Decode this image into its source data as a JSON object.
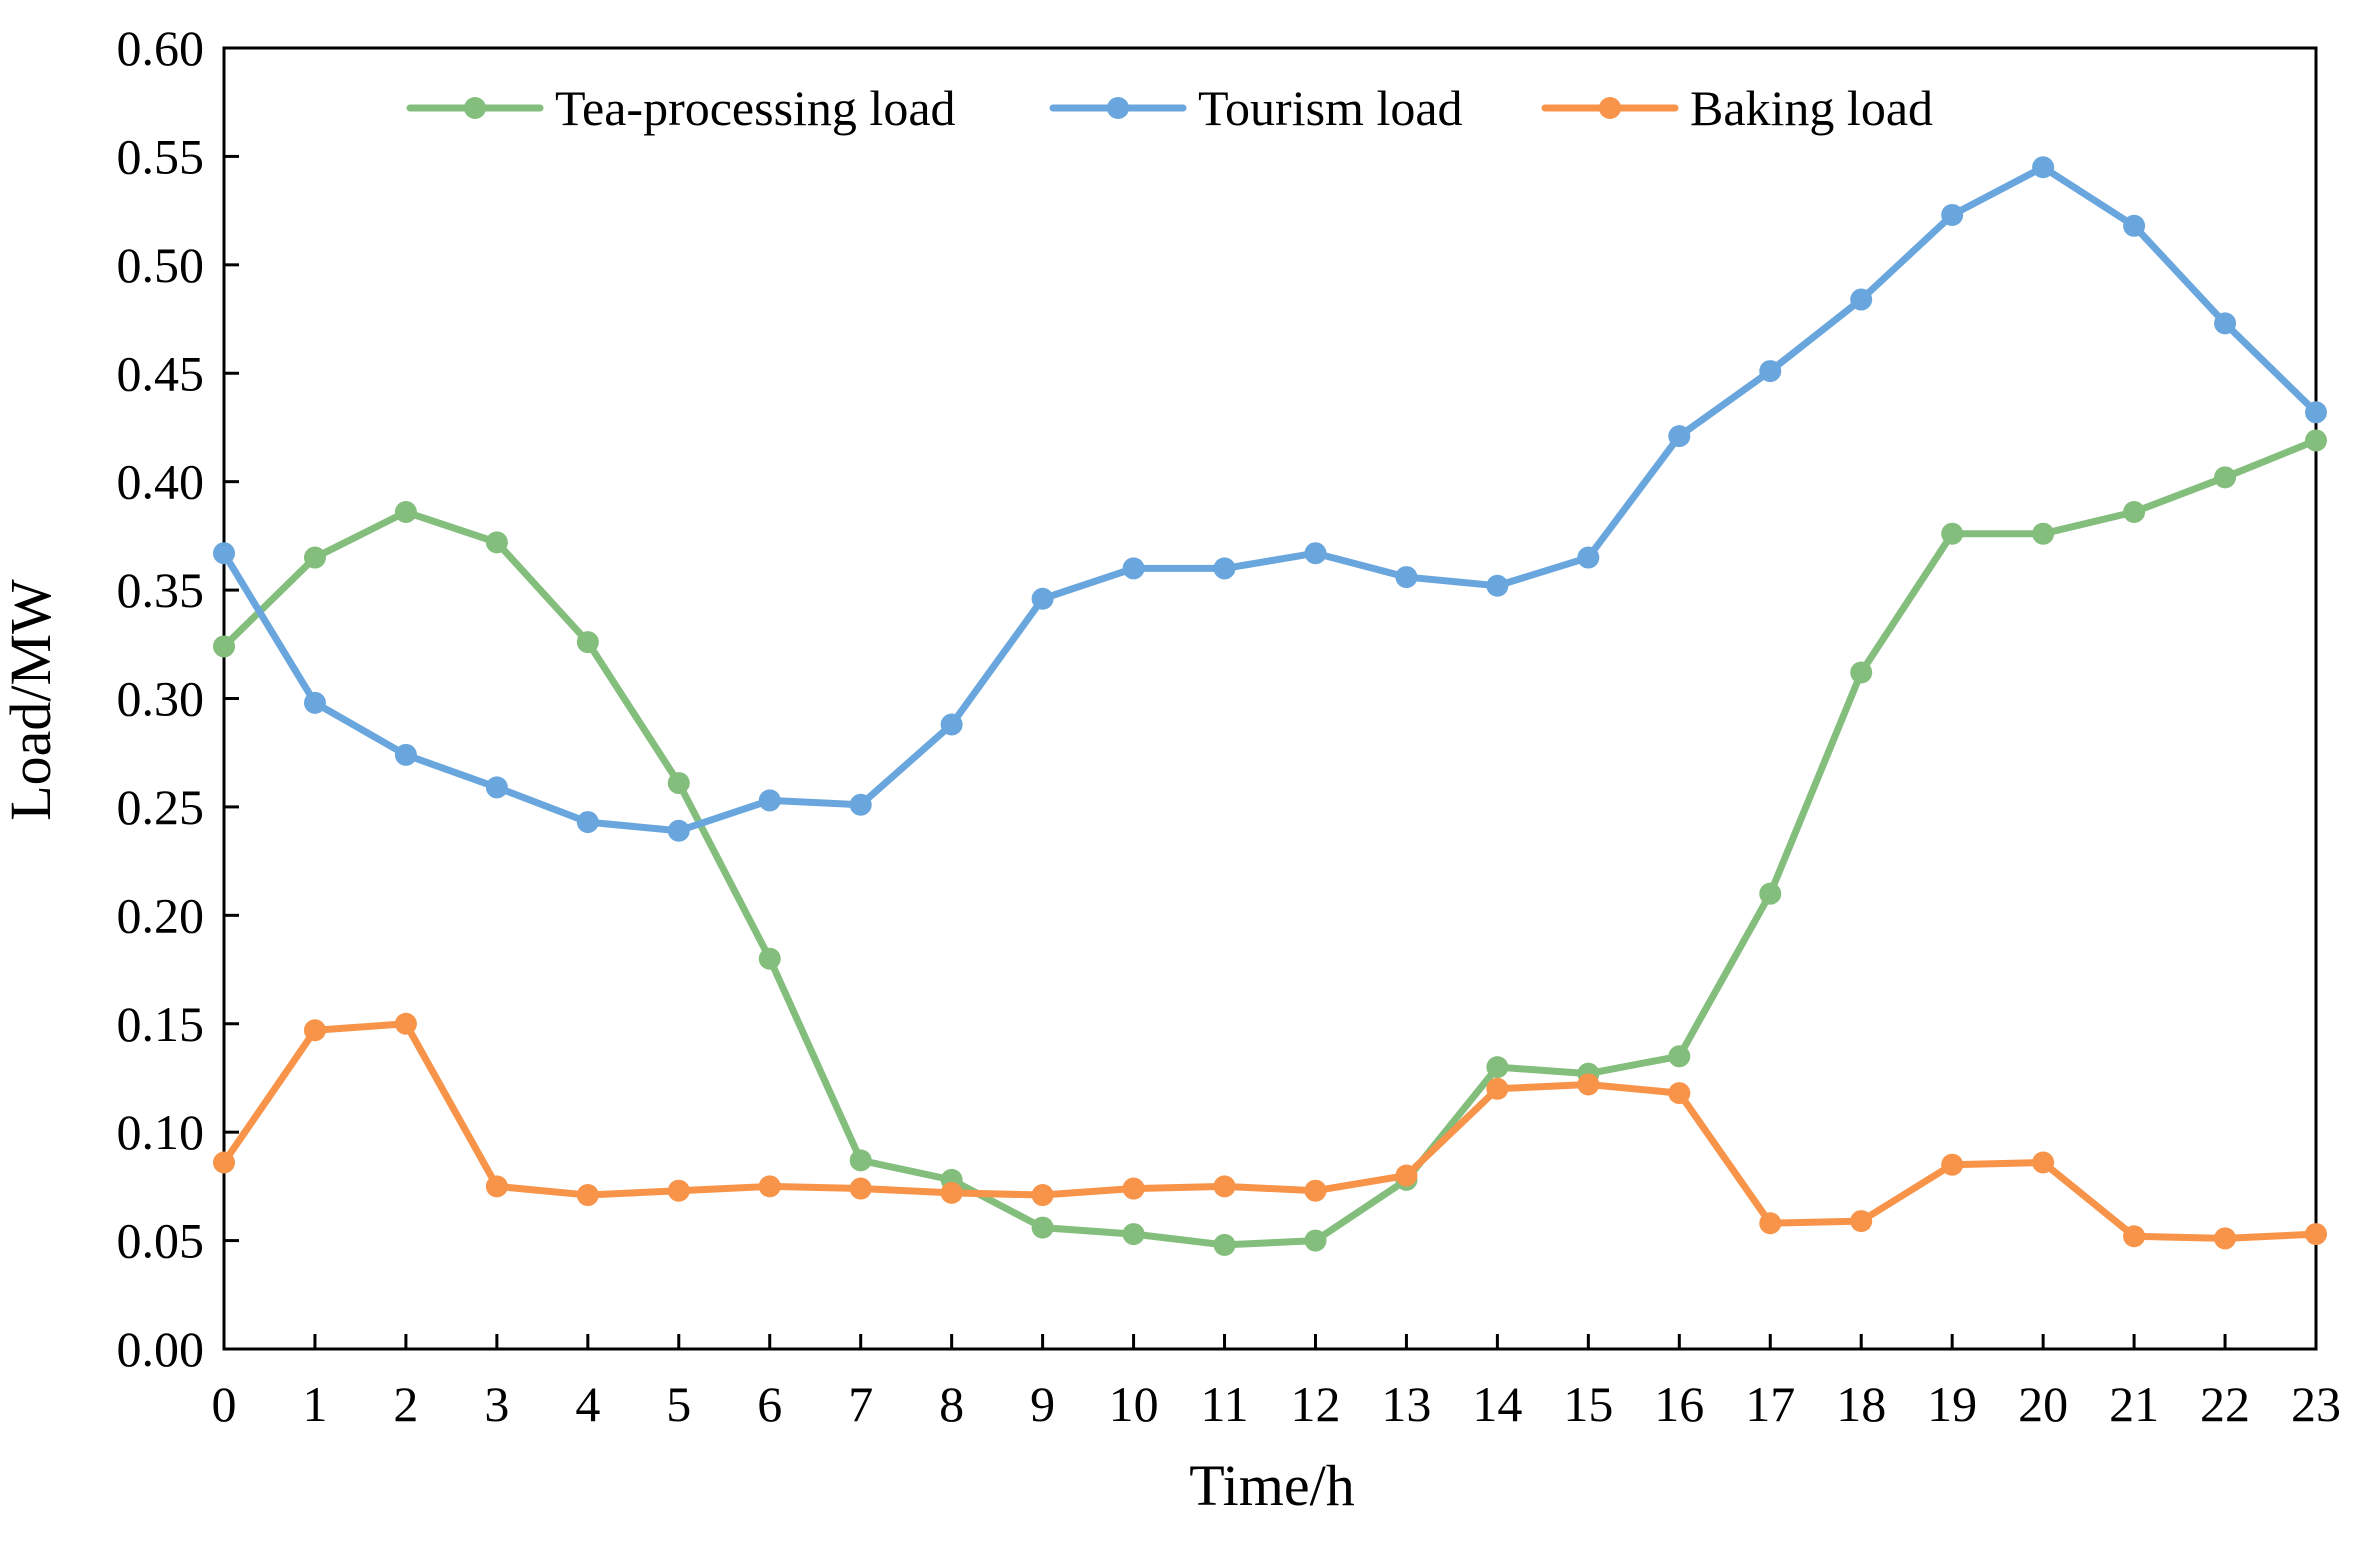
{
  "chart_data": {
    "type": "line",
    "title": "",
    "xlabel": "Time/h",
    "ylabel": "Load/MW",
    "xlim": [
      0,
      23
    ],
    "ylim": [
      0,
      0.6
    ],
    "grid": false,
    "legend_position": "top",
    "x": [
      0,
      1,
      2,
      3,
      4,
      5,
      6,
      7,
      8,
      9,
      10,
      11,
      12,
      13,
      14,
      15,
      16,
      17,
      18,
      19,
      20,
      21,
      22,
      23
    ],
    "x_ticks": [
      "0",
      "1",
      "2",
      "3",
      "4",
      "5",
      "6",
      "7",
      "8",
      "9",
      "10",
      "11",
      "12",
      "13",
      "14",
      "15",
      "16",
      "17",
      "18",
      "19",
      "20",
      "21",
      "22",
      "23"
    ],
    "y_ticks": [
      {
        "value": 0.0,
        "label": "0.00"
      },
      {
        "value": 0.05,
        "label": "0.05"
      },
      {
        "value": 0.1,
        "label": "0.10"
      },
      {
        "value": 0.15,
        "label": "0.15"
      },
      {
        "value": 0.2,
        "label": "0.20"
      },
      {
        "value": 0.25,
        "label": "0.25"
      },
      {
        "value": 0.3,
        "label": "0.30"
      },
      {
        "value": 0.35,
        "label": "0.35"
      },
      {
        "value": 0.4,
        "label": "0.40"
      },
      {
        "value": 0.45,
        "label": "0.45"
      },
      {
        "value": 0.5,
        "label": "0.50"
      },
      {
        "value": 0.55,
        "label": "0.55"
      },
      {
        "value": 0.6,
        "label": "0.60"
      }
    ],
    "series": [
      {
        "id": "tea",
        "name": "Tea-processing load",
        "color": "#83be7c",
        "values": [
          0.324,
          0.365,
          0.386,
          0.372,
          0.326,
          0.261,
          0.18,
          0.087,
          0.078,
          0.056,
          0.053,
          0.048,
          0.05,
          0.078,
          0.13,
          0.127,
          0.135,
          0.21,
          0.312,
          0.376,
          0.376,
          0.386,
          0.402,
          0.419
        ]
      },
      {
        "id": "tourism",
        "name": "Tourism load",
        "color": "#6aa6de",
        "values": [
          0.367,
          0.298,
          0.274,
          0.259,
          0.243,
          0.239,
          0.253,
          0.251,
          0.288,
          0.346,
          0.36,
          0.36,
          0.367,
          0.356,
          0.352,
          0.365,
          0.421,
          0.451,
          0.484,
          0.523,
          0.545,
          0.518,
          0.473,
          0.432
        ]
      },
      {
        "id": "baking",
        "name": "Baking load",
        "color": "#f79449",
        "values": [
          0.086,
          0.147,
          0.15,
          0.075,
          0.071,
          0.073,
          0.075,
          0.074,
          0.072,
          0.071,
          0.074,
          0.075,
          0.073,
          0.08,
          0.12,
          0.122,
          0.118,
          0.058,
          0.059,
          0.085,
          0.086,
          0.052,
          0.051,
          0.053
        ]
      }
    ]
  }
}
